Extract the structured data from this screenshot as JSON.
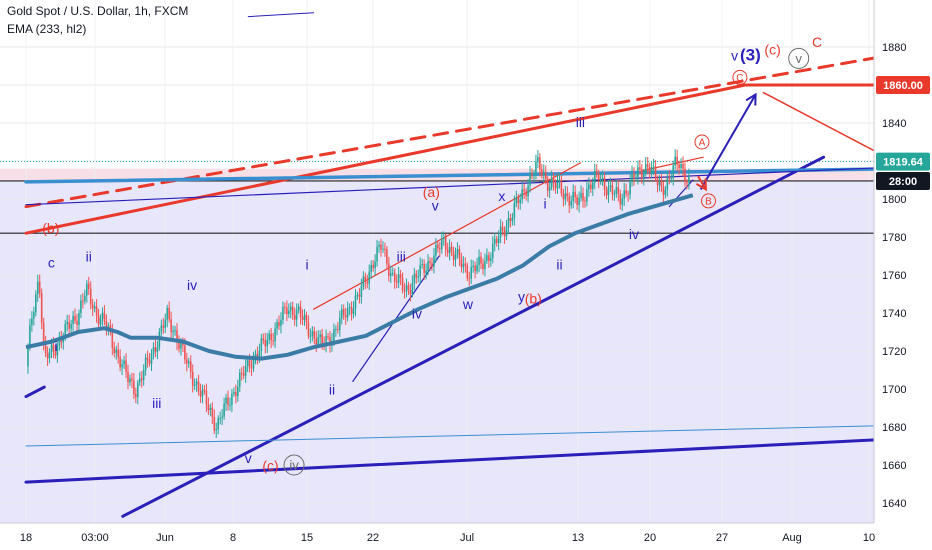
{
  "header": {
    "title": "Gold Spot / U.S. Dollar, 1h, FXCM",
    "indicator": "EMA (233, hl2)"
  },
  "colors": {
    "price_bull": "#26a69a",
    "price_bear": "#ef5350",
    "ema": "#3a7ca5",
    "wave_blue": "#2a1fb8",
    "wave_red": "#e8392b",
    "trend_blue": "#2a1fb8",
    "trend_red": "#e8392b",
    "cyan_line": "#3a8fd0",
    "zone_pink": "#f6dfe6",
    "zone_lavender": "#e7e6fb",
    "axis_text": "#131722"
  },
  "chart_data": {
    "type": "candlestick",
    "symbol": "Gold Spot / U.S. Dollar",
    "interval": "1h",
    "source": "FXCM",
    "indicator": {
      "name": "EMA",
      "params": "233, hl2"
    },
    "x_tick_labels": [
      "18",
      "03:00",
      "Jun",
      "8",
      "15",
      "22",
      "Jul",
      "13",
      "20",
      "27",
      "Aug",
      "10"
    ],
    "y_ticks": [
      1640,
      1660,
      1680,
      1700,
      1720,
      1740,
      1760,
      1780,
      1800,
      1820,
      1840,
      1860,
      1880
    ],
    "ylim": [
      1632,
      1896
    ],
    "price_labels": [
      {
        "text": "1860.00",
        "value": 1860,
        "color": "#e8392b"
      },
      {
        "text": "1819.64",
        "value": 1819.64,
        "color": "#26a69a"
      },
      {
        "text": "28:00",
        "value": 1809.5,
        "color": "#131722"
      }
    ],
    "close_path": [
      [
        0.0,
        1712
      ],
      [
        0.25,
        1740
      ],
      [
        0.5,
        1760
      ],
      [
        0.7,
        1715
      ],
      [
        1.0,
        1720
      ],
      [
        1.5,
        1730
      ],
      [
        2.0,
        1740
      ],
      [
        2.3,
        1752
      ],
      [
        2.7,
        1740
      ],
      [
        3.0,
        1735
      ],
      [
        3.3,
        1725
      ],
      [
        3.6,
        1715
      ],
      [
        3.9,
        1705
      ],
      [
        4.2,
        1700
      ],
      [
        4.6,
        1712
      ],
      [
        5.0,
        1725
      ],
      [
        5.4,
        1738
      ],
      [
        5.7,
        1730
      ],
      [
        6.1,
        1715
      ],
      [
        6.6,
        1700
      ],
      [
        7.0,
        1690
      ],
      [
        7.3,
        1680
      ],
      [
        7.6,
        1690
      ],
      [
        8.0,
        1700
      ],
      [
        8.6,
        1715
      ],
      [
        9.2,
        1725
      ],
      [
        9.7,
        1735
      ],
      [
        10.0,
        1743
      ],
      [
        10.4,
        1740
      ],
      [
        10.8,
        1732
      ],
      [
        11.3,
        1723
      ],
      [
        11.8,
        1730
      ],
      [
        12.2,
        1740
      ],
      [
        12.7,
        1748
      ],
      [
        13.0,
        1758
      ],
      [
        13.3,
        1768
      ],
      [
        13.6,
        1775
      ],
      [
        14.0,
        1760
      ],
      [
        14.5,
        1752
      ],
      [
        15.0,
        1760
      ],
      [
        15.6,
        1770
      ],
      [
        16.0,
        1778
      ],
      [
        16.4,
        1770
      ],
      [
        16.9,
        1762
      ],
      [
        17.4,
        1765
      ],
      [
        17.9,
        1775
      ],
      [
        18.5,
        1790
      ],
      [
        19.0,
        1803
      ],
      [
        19.3,
        1812
      ],
      [
        19.6,
        1818
      ],
      [
        20.0,
        1808
      ],
      [
        20.4,
        1806
      ],
      [
        20.8,
        1800
      ],
      [
        21.1,
        1798
      ],
      [
        21.5,
        1806
      ],
      [
        21.9,
        1812
      ],
      [
        22.3,
        1805
      ],
      [
        22.7,
        1800
      ],
      [
        23.1,
        1808
      ],
      [
        23.5,
        1815
      ],
      [
        23.8,
        1818
      ],
      [
        24.0,
        1812
      ],
      [
        24.3,
        1806
      ],
      [
        24.6,
        1810
      ],
      [
        24.8,
        1817
      ],
      [
        25.0,
        1820
      ],
      [
        25.2,
        1813
      ],
      [
        25.4,
        1808
      ]
    ],
    "ema_path": [
      [
        0.0,
        1722
      ],
      [
        1.0,
        1725
      ],
      [
        2.0,
        1730
      ],
      [
        3.0,
        1732
      ],
      [
        3.5,
        1730
      ],
      [
        4.0,
        1727
      ],
      [
        5.0,
        1727
      ],
      [
        6.0,
        1725
      ],
      [
        7.0,
        1720
      ],
      [
        8.0,
        1717
      ],
      [
        9.0,
        1716
      ],
      [
        10.0,
        1718
      ],
      [
        11.0,
        1722
      ],
      [
        12.0,
        1725
      ],
      [
        13.0,
        1728
      ],
      [
        14.0,
        1735
      ],
      [
        15.0,
        1742
      ],
      [
        16.0,
        1748
      ],
      [
        17.0,
        1753
      ],
      [
        18.0,
        1758
      ],
      [
        19.0,
        1765
      ],
      [
        20.0,
        1775
      ],
      [
        21.0,
        1782
      ],
      [
        22.0,
        1787
      ],
      [
        23.0,
        1792
      ],
      [
        24.0,
        1796
      ],
      [
        25.0,
        1800
      ],
      [
        25.5,
        1802
      ]
    ],
    "trend_lines": [
      {
        "name": "lower channel",
        "color": "blue",
        "width": 3,
        "points": [
          [
            3.7,
            1633
          ],
          [
            30.5,
            1822
          ]
        ]
      },
      {
        "name": "bottom trendline",
        "color": "blue",
        "width": 3,
        "points": [
          [
            0.0,
            1651
          ],
          [
            33.6,
            1674
          ]
        ]
      },
      {
        "name": "upper channel",
        "color": "red",
        "width": 3,
        "points": [
          [
            0.0,
            1782
          ],
          [
            27.5,
            1860
          ]
        ]
      },
      {
        "name": "parallel channel",
        "color": "red",
        "width": 3,
        "dashed": true,
        "points": [
          [
            0.0,
            1796
          ],
          [
            33.6,
            1877
          ]
        ]
      },
      {
        "name": "target level",
        "color": "red",
        "width": 3,
        "points": [
          [
            27.3,
            1860
          ],
          [
            33.6,
            1860
          ]
        ]
      },
      {
        "name": "projected decline",
        "color": "red",
        "width": 1.5,
        "points": [
          [
            28.2,
            1856
          ],
          [
            33.6,
            1817
          ]
        ]
      },
      {
        "name": "horizontal resistance",
        "color": "cyan",
        "width": 3.5,
        "points": [
          [
            0.0,
            1809
          ],
          [
            33.6,
            1816
          ]
        ]
      },
      {
        "name": "thin upper",
        "color": "blue",
        "width": 1.2,
        "points": [
          [
            0.0,
            1797
          ],
          [
            33.6,
            1817
          ]
        ]
      },
      {
        "name": "thin lower",
        "color": "cyan",
        "width": 1,
        "points": [
          [
            0.0,
            1670
          ],
          [
            33.6,
            1681
          ]
        ]
      },
      {
        "name": "wave (a) channel",
        "color": "red",
        "width": 1.2,
        "points": [
          [
            11.0,
            1742
          ],
          [
            21.2,
            1819
          ]
        ]
      },
      {
        "name": "wave A channel",
        "color": "red",
        "width": 1.2,
        "points": [
          [
            23.6,
            1815
          ],
          [
            25.9,
            1822
          ]
        ]
      },
      {
        "name": "impulse line",
        "color": "blue",
        "width": 1.2,
        "points": [
          [
            12.5,
            1704
          ],
          [
            15.8,
            1770
          ]
        ]
      },
      {
        "name": "late impulse",
        "color": "blue",
        "width": 1.2,
        "points": [
          [
            24.6,
            1796
          ],
          [
            25.5,
            1810
          ]
        ]
      },
      {
        "name": "upper top",
        "color": "blue",
        "width": 1,
        "points": [
          [
            8.5,
            1896
          ],
          [
            11.0,
            1898
          ]
        ]
      },
      {
        "name": "left stub",
        "color": "blue",
        "width": 3,
        "points": [
          [
            0.0,
            1696
          ],
          [
            0.7,
            1701
          ]
        ]
      }
    ],
    "arrows": [
      {
        "name": "bullish projection",
        "color": "blue",
        "points": [
          [
            25.8,
            1805
          ],
          [
            27.9,
            1855
          ]
        ]
      },
      {
        "name": "B dip",
        "color": "red",
        "points": [
          [
            25.7,
            1812
          ],
          [
            26.0,
            1805
          ]
        ]
      }
    ],
    "wave_labels": [
      {
        "text": "c",
        "x": 0.97,
        "y": 1764,
        "color": "blue"
      },
      {
        "text": "ii",
        "x": 2.4,
        "y": 1767,
        "color": "blue"
      },
      {
        "text": "i",
        "x": 1.15,
        "y": 1720,
        "color": "blue"
      },
      {
        "text": "iii",
        "x": 5.0,
        "y": 1690,
        "color": "blue"
      },
      {
        "text": "iv",
        "x": 6.35,
        "y": 1752,
        "color": "blue"
      },
      {
        "text": "v",
        "x": 8.5,
        "y": 1661,
        "color": "blue"
      },
      {
        "text": "i",
        "x": 10.75,
        "y": 1763,
        "color": "blue"
      },
      {
        "text": "ii",
        "x": 11.7,
        "y": 1697,
        "color": "blue"
      },
      {
        "text": "iii",
        "x": 14.35,
        "y": 1767,
        "color": "blue"
      },
      {
        "text": "iv",
        "x": 14.95,
        "y": 1737,
        "color": "blue"
      },
      {
        "text": "v",
        "x": 15.65,
        "y": 1794,
        "color": "blue"
      },
      {
        "text": "w",
        "x": 16.9,
        "y": 1742,
        "color": "blue"
      },
      {
        "text": "x",
        "x": 18.2,
        "y": 1799,
        "color": "blue"
      },
      {
        "text": "y",
        "x": 18.95,
        "y": 1746,
        "color": "blue"
      },
      {
        "text": "i",
        "x": 19.85,
        "y": 1795,
        "color": "blue"
      },
      {
        "text": "ii",
        "x": 20.4,
        "y": 1763,
        "color": "blue"
      },
      {
        "text": "iii",
        "x": 21.2,
        "y": 1838,
        "color": "blue"
      },
      {
        "text": "iv",
        "x": 23.25,
        "y": 1779,
        "color": "blue"
      },
      {
        "text": "v",
        "x": 27.1,
        "y": 1873,
        "color": "blue"
      },
      {
        "text": "(3)",
        "x": 27.7,
        "y": 1873,
        "color": "blue"
      },
      {
        "text": "(a)",
        "x": 15.5,
        "y": 1801,
        "color": "red"
      },
      {
        "text": "(b)",
        "x": 0.95,
        "y": 1782,
        "color": "red"
      },
      {
        "text": "(b)",
        "x": 19.4,
        "y": 1745,
        "color": "red"
      },
      {
        "text": "(c)",
        "x": 9.35,
        "y": 1657,
        "color": "red"
      },
      {
        "text": "(c)",
        "x": 28.55,
        "y": 1876,
        "color": "red"
      },
      {
        "text": "C",
        "x": 30.25,
        "y": 1880,
        "color": "red"
      }
    ],
    "circled_labels": [
      {
        "text": "iv",
        "x": 10.25,
        "y": 1660,
        "color": "gray",
        "r": 10
      },
      {
        "text": "v",
        "x": 29.55,
        "y": 1874,
        "color": "gray",
        "r": 10
      },
      {
        "text": "A",
        "x": 25.85,
        "y": 1830,
        "color": "red",
        "r": 7
      },
      {
        "text": "B",
        "x": 26.1,
        "y": 1799,
        "color": "red",
        "r": 7
      },
      {
        "text": "C",
        "x": 27.3,
        "y": 1864,
        "color": "red",
        "r": 7
      }
    ]
  }
}
